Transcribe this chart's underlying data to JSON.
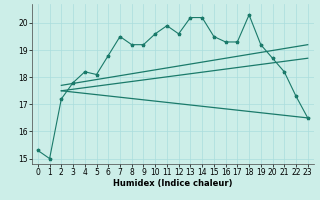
{
  "xlabel": "Humidex (Indice chaleur)",
  "bg_color": "#cceee8",
  "line_color": "#1a7a6a",
  "x_values": [
    0,
    1,
    2,
    3,
    4,
    5,
    6,
    7,
    8,
    9,
    10,
    11,
    12,
    13,
    14,
    15,
    16,
    17,
    18,
    19,
    20,
    21,
    22,
    23
  ],
  "series1": [
    15.3,
    15.0,
    17.2,
    17.8,
    18.2,
    18.1,
    18.8,
    19.5,
    19.2,
    19.2,
    19.6,
    19.9,
    19.6,
    20.2,
    20.2,
    19.5,
    19.3,
    19.3,
    20.3,
    19.2,
    18.7,
    18.2,
    17.3,
    16.5
  ],
  "trendline1_x": [
    2,
    23
  ],
  "trendline1_y": [
    17.5,
    18.7
  ],
  "trendline2_x": [
    2,
    23
  ],
  "trendline2_y": [
    17.7,
    19.2
  ],
  "trendline3_x": [
    2,
    23
  ],
  "trendline3_y": [
    17.5,
    16.5
  ],
  "ylim": [
    14.8,
    20.7
  ],
  "xlim": [
    -0.5,
    23.5
  ],
  "yticks": [
    15,
    16,
    17,
    18,
    19,
    20
  ],
  "xticks": [
    0,
    1,
    2,
    3,
    4,
    5,
    6,
    7,
    8,
    9,
    10,
    11,
    12,
    13,
    14,
    15,
    16,
    17,
    18,
    19,
    20,
    21,
    22,
    23
  ],
  "tick_fontsize": 5.5,
  "xlabel_fontsize": 6.0,
  "grid_color": "#aadddd"
}
